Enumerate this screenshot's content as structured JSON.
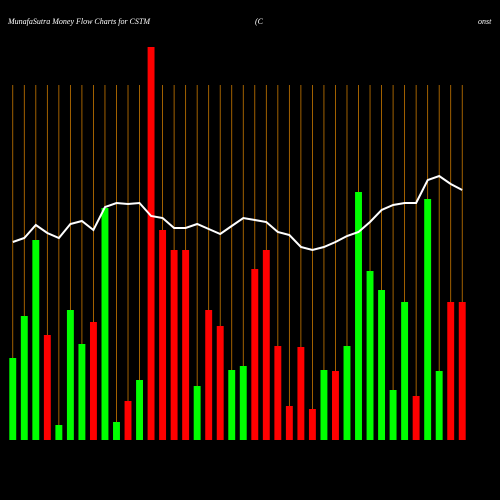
{
  "chart_data": {
    "type": "bar",
    "title": "MunafaSutra  Money Flow  Charts for CSTM",
    "subtitle": "(C",
    "subtitle_end": "onst",
    "categories": [
      null,
      null,
      null,
      null,
      null,
      null,
      null,
      null,
      null,
      null,
      null,
      null,
      null,
      null,
      null,
      null,
      null,
      null,
      null,
      null,
      null,
      null,
      null,
      null,
      null,
      null,
      null,
      null,
      null,
      null,
      null,
      null,
      null,
      null,
      null,
      null,
      null,
      null,
      null,
      null
    ],
    "values": [
      82,
      124,
      200,
      105,
      15,
      130,
      96,
      118,
      232,
      18,
      39,
      60,
      393,
      210,
      190,
      190,
      54,
      130,
      114,
      70,
      74,
      171,
      190,
      94,
      34,
      93,
      31,
      70,
      69,
      94,
      248,
      169,
      150,
      50,
      138,
      44,
      241,
      69,
      138,
      138
    ],
    "colors": [
      "#00ff00",
      "#00ff00",
      "#00ff00",
      "#ff0000",
      "#00ff00",
      "#00ff00",
      "#00ff00",
      "#ff0000",
      "#00ff00",
      "#00ff00",
      "#ff0000",
      "#00ff00",
      "#ff0000",
      "#ff0000",
      "#ff0000",
      "#ff0000",
      "#00ff00",
      "#ff0000",
      "#ff0000",
      "#00ff00",
      "#00ff00",
      "#ff0000",
      "#ff0000",
      "#ff0000",
      "#ff0000",
      "#ff0000",
      "#ff0000",
      "#00ff00",
      "#ff0000",
      "#00ff00",
      "#00ff00",
      "#00ff00",
      "#00ff00",
      "#00ff00",
      "#00ff00",
      "#ff0000",
      "#00ff00",
      "#00ff00",
      "#ff0000",
      "#ff0000"
    ],
    "line_values": [
      198,
      202,
      215,
      207,
      202,
      216,
      219,
      210,
      233,
      237,
      236,
      237,
      224,
      222,
      212,
      212,
      216,
      211,
      206,
      214,
      222,
      220,
      218,
      208,
      205,
      193,
      190,
      193,
      198,
      204,
      208,
      218,
      230,
      235,
      237,
      237,
      260,
      264,
      256,
      250
    ],
    "line_color": "#ffffff",
    "ylim": [
      0,
      400
    ],
    "grid": true,
    "grid_color": "#c87800"
  }
}
